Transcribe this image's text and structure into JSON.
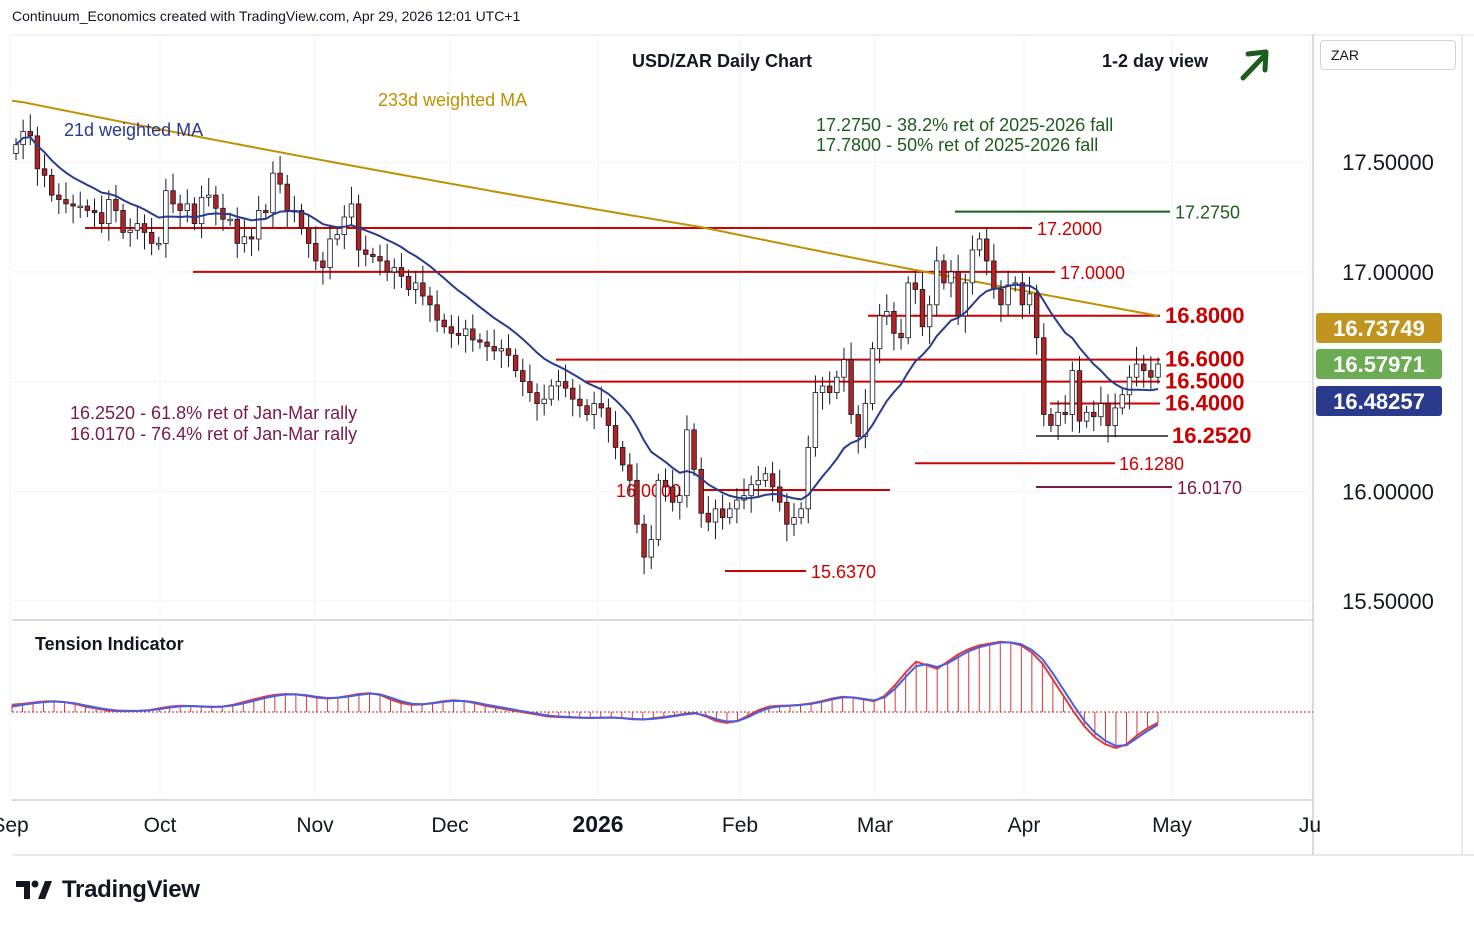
{
  "header": {
    "attribution": "Continuum_Economics created with TradingView.com, Apr 29, 2026 12:01 UTC+1"
  },
  "currency_button": "ZAR",
  "logo_text": "TradingView",
  "colors": {
    "up_candle": "#ffffff",
    "down_candle": "#b22222",
    "ma21": "#2a3a8c",
    "ma233": "#bf9000",
    "level_line": "#cc0000",
    "fib_green": "#1e5c1e",
    "fib_purple": "#7a1a4a",
    "price_current": "#6aab53",
    "price_ma233": "#c19420",
    "price_ma21": "#2a3a8c"
  },
  "chart_data": [
    {
      "type": "candlestick",
      "title": "USD/ZAR Daily Chart",
      "view_label": "1-2 day view",
      "view_arrow": "up-right-arrow",
      "x_tick_labels": [
        "Sep",
        "Oct",
        "Nov",
        "Dec",
        "2026",
        "Feb",
        "Mar",
        "Apr",
        "May",
        "Ju"
      ],
      "y_tick_labels": [
        "17.50000",
        "17.00000",
        "16.00000",
        "15.50000"
      ],
      "y_ticks": [
        17.5,
        17.0,
        16.0,
        15.5
      ],
      "ylim": [
        15.45,
        17.75
      ],
      "series_labels": {
        "ma21": "21d weighted MA",
        "ma233": "233d weighted MA"
      },
      "price_labels": [
        {
          "name": "ma233",
          "value": "16.73749"
        },
        {
          "name": "current",
          "value": "16.57971"
        },
        {
          "name": "ma21",
          "value": "16.48257"
        }
      ],
      "notes": {
        "fib_resistance": [
          "17.2750 - 38.2% ret of 2025-2026 fall",
          "17.7800 - 50% ret of 2025-2026 fall"
        ],
        "fib_support": [
          "16.2520 - 61.8% ret of Jan-Mar rally",
          "16.0170 - 76.4% ret of Jan-Mar rally"
        ]
      },
      "levels": [
        {
          "value": 17.275,
          "label": "17.2750",
          "style": "green"
        },
        {
          "value": 17.2,
          "label": "17.2000",
          "style": "red"
        },
        {
          "value": 17.0,
          "label": "17.0000",
          "style": "red"
        },
        {
          "value": 16.8,
          "label": "16.8000",
          "style": "red-bold"
        },
        {
          "value": 16.6,
          "label": "16.6000",
          "style": "red-bold"
        },
        {
          "value": 16.5,
          "label": "16.5000",
          "style": "red-bold"
        },
        {
          "value": 16.4,
          "label": "16.4000",
          "style": "red-bold"
        },
        {
          "value": 16.252,
          "label": "16.2520",
          "style": "gray-bold"
        },
        {
          "value": 16.128,
          "label": "16.1280",
          "style": "red"
        },
        {
          "value": 16.0,
          "label": "16.0000",
          "style": "red"
        },
        {
          "value": 16.017,
          "label": "16.0170",
          "style": "purple"
        },
        {
          "value": 15.637,
          "label": "15.6370",
          "style": "red"
        }
      ],
      "closes": [
        17.58,
        17.64,
        17.62,
        17.47,
        17.44,
        17.35,
        17.33,
        17.31,
        17.3,
        17.3,
        17.28,
        17.27,
        17.22,
        17.33,
        17.28,
        17.18,
        17.19,
        17.22,
        17.18,
        17.13,
        17.13,
        17.37,
        17.31,
        17.28,
        17.31,
        17.22,
        17.34,
        17.35,
        17.29,
        17.24,
        17.24,
        17.13,
        17.16,
        17.15,
        17.28,
        17.27,
        17.45,
        17.4,
        17.28,
        17.28,
        17.2,
        17.13,
        17.05,
        17.02,
        17.15,
        17.17,
        17.25,
        17.31,
        17.1,
        17.08,
        17.07,
        17.05,
        17.0,
        17.02,
        16.98,
        16.92,
        16.95,
        16.89,
        16.85,
        16.78,
        16.75,
        16.72,
        16.71,
        16.74,
        16.69,
        16.68,
        16.66,
        16.64,
        16.65,
        16.62,
        16.55,
        16.5,
        16.45,
        16.4,
        16.42,
        16.48,
        16.5,
        16.47,
        16.42,
        16.39,
        16.35,
        16.4,
        16.38,
        16.3,
        16.2,
        16.12,
        16.05,
        15.85,
        15.7,
        15.78,
        16.05,
        16.02,
        15.95,
        15.98,
        16.28,
        16.1,
        15.9,
        15.86,
        15.92,
        15.88,
        15.92,
        15.96,
        15.98,
        16.03,
        16.05,
        16.08,
        16.02,
        15.95,
        15.85,
        15.88,
        15.92,
        16.2,
        16.45,
        16.48,
        16.45,
        16.52,
        16.6,
        16.35,
        16.25,
        16.4,
        16.65,
        16.8,
        16.82,
        16.72,
        16.7,
        16.95,
        16.92,
        16.75,
        16.85,
        17.05,
        16.95,
        17.0,
        16.8,
        16.95,
        17.1,
        17.15,
        17.05,
        16.92,
        16.85,
        16.94,
        16.95,
        16.85,
        16.9,
        16.7,
        16.35,
        16.3,
        16.36,
        16.35,
        16.55,
        16.32,
        16.36,
        16.34,
        16.4,
        16.3,
        16.38,
        16.44,
        16.52,
        16.58,
        16.55,
        16.52,
        16.58
      ]
    },
    {
      "type": "line",
      "title": "Tension Indicator",
      "values": [
        0.4,
        0.45,
        0.52,
        0.58,
        0.6,
        0.55,
        0.45,
        0.3,
        0.2,
        0.1,
        0.05,
        0.05,
        0.06,
        0.1,
        0.2,
        0.3,
        0.35,
        0.33,
        0.3,
        0.28,
        0.3,
        0.4,
        0.55,
        0.7,
        0.85,
        0.95,
        1.0,
        0.98,
        0.9,
        0.8,
        0.75,
        0.8,
        0.9,
        1.0,
        1.05,
        0.95,
        0.7,
        0.5,
        0.4,
        0.42,
        0.5,
        0.6,
        0.65,
        0.6,
        0.5,
        0.35,
        0.25,
        0.15,
        0.05,
        -0.05,
        -0.15,
        -0.25,
        -0.28,
        -0.3,
        -0.32,
        -0.33,
        -0.32,
        -0.3,
        -0.34,
        -0.4,
        -0.42,
        -0.35,
        -0.28,
        -0.2,
        -0.1,
        -0.05,
        -0.25,
        -0.5,
        -0.6,
        -0.5,
        -0.2,
        0.1,
        0.3,
        0.35,
        0.36,
        0.4,
        0.48,
        0.6,
        0.75,
        0.85,
        0.8,
        0.7,
        0.6,
        0.9,
        1.5,
        2.2,
        2.8,
        2.6,
        2.4,
        2.8,
        3.2,
        3.5,
        3.7,
        3.8,
        3.9,
        3.85,
        3.7,
        3.3,
        2.7,
        1.8,
        0.9,
        0.0,
        -0.8,
        -1.4,
        -1.8,
        -2.0,
        -1.8,
        -1.3,
        -0.9,
        -0.6
      ],
      "signal": [
        0.3,
        0.4,
        0.48,
        0.55,
        0.58,
        0.55,
        0.48,
        0.36,
        0.25,
        0.15,
        0.08,
        0.06,
        0.06,
        0.09,
        0.16,
        0.25,
        0.31,
        0.33,
        0.31,
        0.29,
        0.3,
        0.36,
        0.48,
        0.62,
        0.77,
        0.89,
        0.97,
        0.98,
        0.93,
        0.84,
        0.78,
        0.79,
        0.86,
        0.95,
        1.02,
        0.98,
        0.8,
        0.6,
        0.46,
        0.43,
        0.48,
        0.56,
        0.62,
        0.61,
        0.54,
        0.42,
        0.31,
        0.21,
        0.1,
        0.0,
        -0.1,
        -0.2,
        -0.25,
        -0.28,
        -0.31,
        -0.32,
        -0.32,
        -0.31,
        -0.33,
        -0.38,
        -0.41,
        -0.38,
        -0.31,
        -0.23,
        -0.14,
        -0.08,
        -0.2,
        -0.4,
        -0.53,
        -0.51,
        -0.29,
        0.0,
        0.22,
        0.31,
        0.35,
        0.39,
        0.45,
        0.56,
        0.7,
        0.81,
        0.81,
        0.73,
        0.64,
        0.82,
        1.3,
        1.95,
        2.55,
        2.65,
        2.5,
        2.7,
        3.05,
        3.38,
        3.6,
        3.74,
        3.86,
        3.87,
        3.76,
        3.45,
        2.95,
        2.15,
        1.25,
        0.35,
        -0.5,
        -1.15,
        -1.6,
        -1.88,
        -1.85,
        -1.45,
        -1.05,
        -0.7
      ]
    }
  ]
}
